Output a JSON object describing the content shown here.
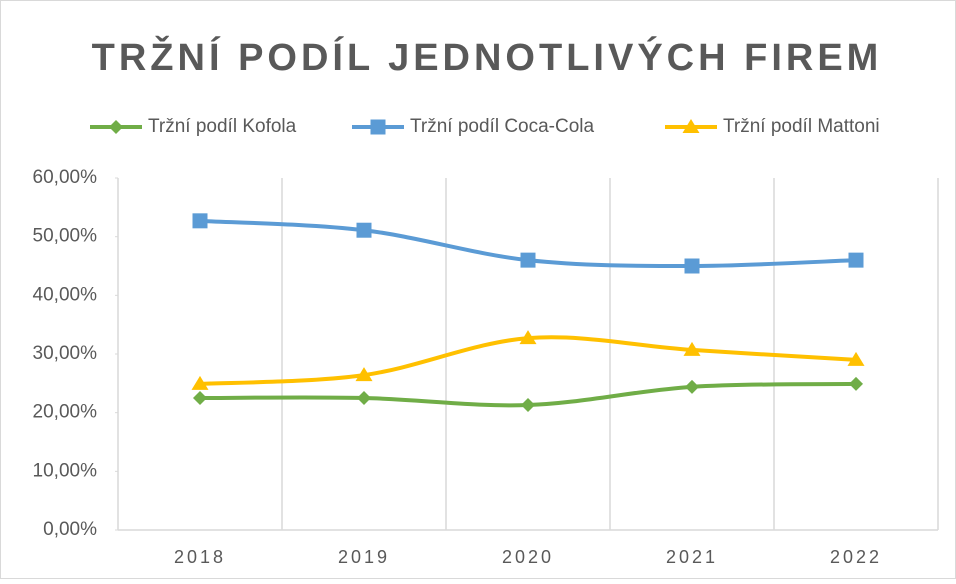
{
  "chart_data": {
    "type": "line",
    "title": "TRŽNÍ PODÍL JEDNOTLIVÝCH FIREM",
    "categories": [
      "2018",
      "2019",
      "2020",
      "2021",
      "2022"
    ],
    "series": [
      {
        "name": "Tržní podíl Kofola",
        "color": "#70ad47",
        "marker": "diamond",
        "values": [
          22.5,
          22.5,
          21.3,
          24.4,
          24.9
        ]
      },
      {
        "name": "Tržní podíl Coca-Cola",
        "color": "#5b9bd5",
        "marker": "square",
        "values": [
          52.7,
          51.1,
          46.0,
          45.0,
          46.0
        ]
      },
      {
        "name": "Tržní podíl Mattoni",
        "color": "#ffc000",
        "marker": "triangle",
        "values": [
          24.9,
          26.4,
          32.7,
          30.7,
          29.0
        ]
      }
    ],
    "ylim": [
      0,
      60
    ],
    "yticks": [
      {
        "value": 0,
        "label": "0,00%"
      },
      {
        "value": 10,
        "label": "10,00%"
      },
      {
        "value": 20,
        "label": "20,00%"
      },
      {
        "value": 30,
        "label": "30,00%"
      },
      {
        "value": 40,
        "label": "40,00%"
      },
      {
        "value": 50,
        "label": "50,00%"
      },
      {
        "value": 60,
        "label": "60,00%"
      }
    ],
    "smooth": true,
    "legend": "top"
  }
}
